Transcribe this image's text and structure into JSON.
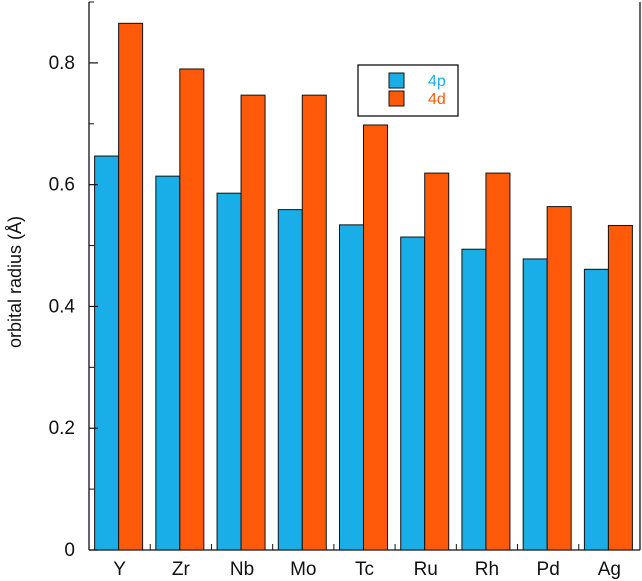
{
  "chart_data": {
    "type": "bar",
    "title": "",
    "xlabel": "",
    "ylabel": "orbital radius (Å)",
    "ylim": [
      0,
      0.9
    ],
    "yticks": [
      "0",
      "0.2",
      "0.4",
      "0.6",
      "0.8"
    ],
    "categories": [
      "Y",
      "Zr",
      "Nb",
      "Mo",
      "Tc",
      "Ru",
      "Rh",
      "Pd",
      "Ag"
    ],
    "series": [
      {
        "name": "4p",
        "color": "#1aaee8",
        "values": [
          0.647,
          0.614,
          0.586,
          0.559,
          0.534,
          0.514,
          0.494,
          0.478,
          0.461
        ]
      },
      {
        "name": "4d",
        "color": "#ff5a0a",
        "values": [
          0.865,
          0.79,
          0.747,
          0.747,
          0.698,
          0.619,
          0.619,
          0.564,
          0.533
        ]
      }
    ],
    "grid": false,
    "legend_position": "top-right"
  }
}
